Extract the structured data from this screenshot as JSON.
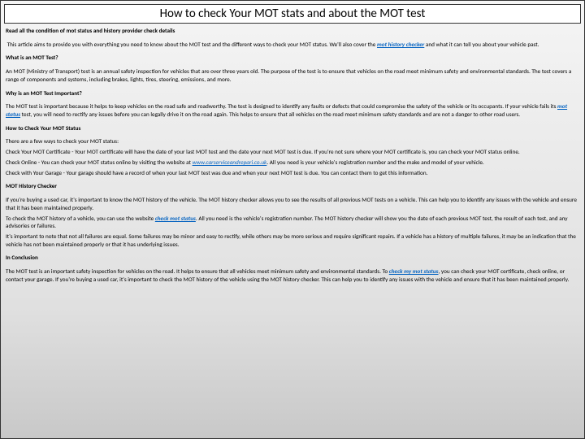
{
  "title": "How to check Your MOT stats and about the MOT test",
  "subtitle": "Read all the condition of mot status and history provider check details",
  "intro_a": "This article aims to provide you with everything you need to know about the MOT test and the different ways to check your MOT status. We'll also cover the ",
  "intro_link": "mot history checker",
  "intro_b": " and what it can tell you about your vehicle past.",
  "h1": "What is an MOT Test?",
  "p1": "An MOT (Ministry of Transport) test is an annual safety inspection for vehicles that are over three years old. The purpose of the test is to ensure that vehicles on the road meet minimum safety and environmental standards. The test covers a range of components and systems, including brakes, lights, tires, steering, emissions, and more.",
  "h2": "Why is an MOT Test Important?",
  "p2a": "The MOT test is important because it helps to keep vehicles on the road safe and roadworthy. The test is designed to identify any faults or defects that could compromise the safety of the vehicle or its occupants. If your vehicle fails its ",
  "p2link": "mot status",
  "p2b": " test, you will need to rectify any issues before you can legally drive it on the road again. This helps to ensure that all vehicles on the road meet minimum safety standards and are not a danger to other road users.",
  "h3": "How to Check Your MOT Status",
  "p3intro": "There are a few ways to check your MOT status:",
  "p3a": "Check Your MOT Certificate - Your MOT certificate will have the date of your last MOT test and the date your next MOT test is due. If you're not sure where your MOT certificate is, you can check your MOT status online.",
  "p3b_a": "Check Online - You can check your MOT status online by visiting the website at ",
  "p3b_link": "www.carserviceandrepari.co.uk",
  "p3b_b": ". All you need is your vehicle's registration number and the make and model of your vehicle.",
  "p3c": "Check with Your Garage - Your garage should have a record of when your last MOT test was due and when your next MOT test is due. You can contact them to get this information.",
  "h4": "MOT History Checker",
  "p4a": "If you're buying a used car, it's important to know the MOT history of the vehicle. The MOT history checker allows you to see the results of all previous MOT tests on a vehicle. This can help you to identify any issues with the vehicle and ensure that it has been maintained properly.",
  "p4b_a": "To check the MOT history of a vehicle, you can use the website ",
  "p4b_link": "check mot status",
  "p4b_b": ".  All you need is the vehicle's registration number. The MOT history checker will show you the date of each previous MOT test, the result of each test, and any advisories or failures.",
  "p4c": "It's important to note that not all failures are equal. Some failures may be minor and easy to rectify, while others may be more serious and require significant repairs. If a vehicle has a history of multiple failures, it may be an indication that the vehicle has not been maintained properly or that it has underlying issues.",
  "h5": "In Conclusion",
  "p5a": "The MOT test is an important safety inspection for vehicles on the road. It helps to ensure that all vehicles meet minimum safety and environmental standards. To ",
  "p5link": "check my mot status",
  "p5b": ", you can check your MOT certificate, check online, or contact your garage. If you're buying a used car, it's important to check the MOT history of the vehicle using the MOT history checker. This can help you to identify any issues with the vehicle and ensure that it has been maintained properly."
}
